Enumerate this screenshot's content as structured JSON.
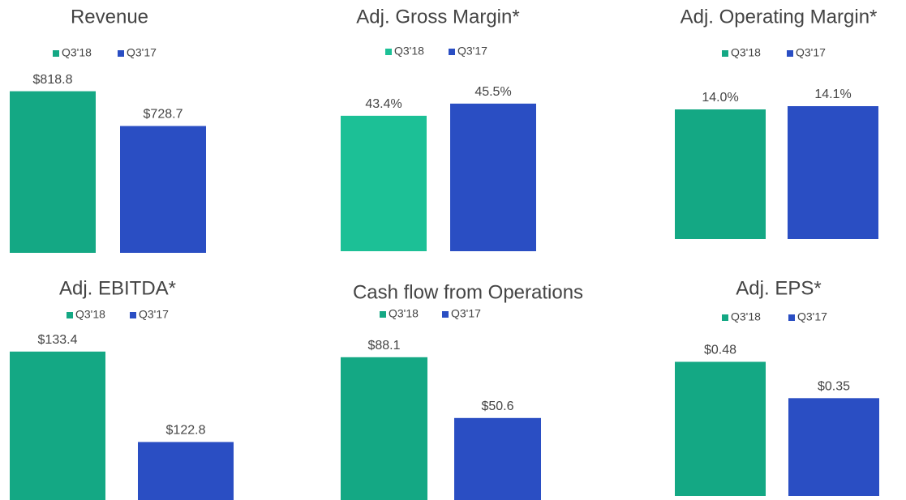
{
  "chart_data": [
    {
      "type": "bar",
      "title": "Revenue",
      "ylim": [
        400,
        820
      ],
      "series": [
        {
          "name": "Q3'18",
          "color": "#14a884",
          "values": [
            818.8
          ],
          "value_labels": [
            "$818.8"
          ]
        },
        {
          "name": "Q3'17",
          "color": "#2a4ec3",
          "values": [
            728.7
          ],
          "value_labels": [
            "$728.7"
          ]
        }
      ]
    },
    {
      "type": "bar",
      "title": "Adj. Gross Margin*",
      "ylim": [
        20,
        48
      ],
      "series": [
        {
          "name": "Q3'18",
          "color": "#1cc096",
          "values": [
            43.4
          ],
          "value_labels": [
            "43.4%"
          ]
        },
        {
          "name": "Q3'17",
          "color": "#2a4ec3",
          "values": [
            45.5
          ],
          "value_labels": [
            "45.5%"
          ]
        }
      ]
    },
    {
      "type": "bar",
      "title": "Adj. Operating Margin*",
      "ylim": [
        10,
        15
      ],
      "series": [
        {
          "name": "Q3'18",
          "color": "#14a884",
          "values": [
            14.0
          ],
          "value_labels": [
            "14.0%"
          ]
        },
        {
          "name": "Q3'17",
          "color": "#2a4ec3",
          "values": [
            14.1
          ],
          "value_labels": [
            "14.1%"
          ]
        }
      ]
    },
    {
      "type": "bar",
      "title": "Adj. EBITDA*",
      "ylim": [
        116,
        135
      ],
      "series": [
        {
          "name": "Q3'18",
          "color": "#14a884",
          "values": [
            133.4
          ],
          "value_labels": [
            "$133.4"
          ]
        },
        {
          "name": "Q3'17",
          "color": "#2a4ec3",
          "values": [
            122.8
          ],
          "value_labels": [
            "$122.8"
          ]
        }
      ]
    },
    {
      "type": "bar",
      "title": "Cash flow from Operations",
      "ylim": [
        0,
        100
      ],
      "series": [
        {
          "name": "Q3'18",
          "color": "#14a884",
          "values": [
            88.1
          ],
          "value_labels": [
            "$88.1"
          ]
        },
        {
          "name": "Q3'17",
          "color": "#2a4ec3",
          "values": [
            50.6
          ],
          "value_labels": [
            "$50.6"
          ]
        }
      ]
    },
    {
      "type": "bar",
      "title": "Adj. EPS*",
      "ylim": [
        0,
        0.58
      ],
      "series": [
        {
          "name": "Q3'18",
          "color": "#14a884",
          "values": [
            0.48
          ],
          "value_labels": [
            "$0.48"
          ]
        },
        {
          "name": "Q3'17",
          "color": "#2a4ec3",
          "values": [
            0.35
          ],
          "value_labels": [
            "$0.35"
          ]
        }
      ]
    }
  ]
}
